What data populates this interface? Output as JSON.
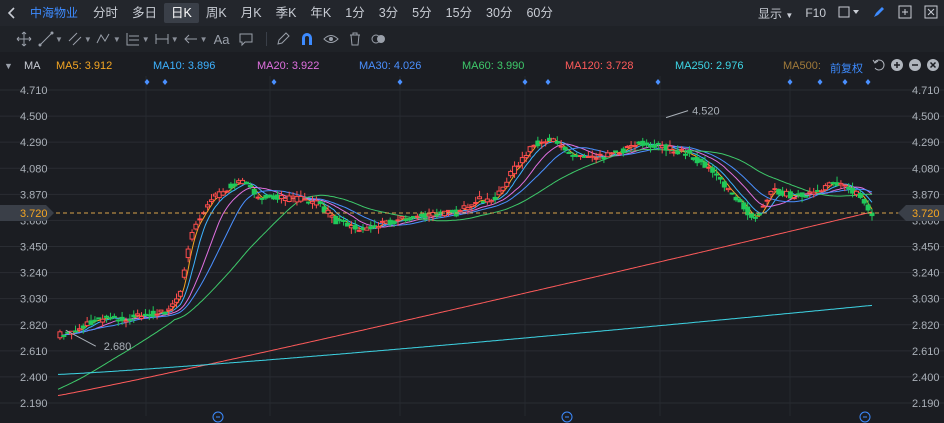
{
  "topbar": {
    "stock_name": "中海物业",
    "tabs": [
      "分时",
      "多日",
      "日K",
      "周K",
      "月K",
      "季K",
      "年K",
      "1分",
      "3分",
      "5分",
      "15分",
      "30分",
      "60分"
    ],
    "active_tab": "日K",
    "display_label": "显示",
    "f10_label": "F10"
  },
  "toolbar": {
    "text_tool_label": "Aa"
  },
  "legend": {
    "main_label": "MA",
    "items": [
      {
        "label": "MA5: 3.912",
        "color": "#f5a623"
      },
      {
        "label": "MA10: 3.896",
        "color": "#3db2ff"
      },
      {
        "label": "MA20: 3.922",
        "color": "#e070e0"
      },
      {
        "label": "MA30: 4.026",
        "color": "#4a90ff"
      },
      {
        "label": "MA60: 3.990",
        "color": "#3ec96a"
      },
      {
        "label": "MA120: 3.728",
        "color": "#ff5b5b"
      },
      {
        "label": "MA250: 2.976",
        "color": "#3ed6e6"
      },
      {
        "label": "MA500: ",
        "color": "#a07a3a"
      }
    ],
    "adjust_label": "前复权"
  },
  "chart_data": {
    "type": "candlestick",
    "y_ticks": [
      "4.710",
      "4.500",
      "4.290",
      "4.080",
      "3.870",
      "3.660",
      "3.450",
      "3.240",
      "3.030",
      "2.820",
      "2.610",
      "2.400",
      "2.190"
    ],
    "ylim": [
      2.19,
      4.71
    ],
    "current_price": "3.720",
    "high_annotation": "4.520",
    "low_annotation": "2.680",
    "colors": {
      "up": "#ff4d4d",
      "down": "#20c95a"
    }
  }
}
